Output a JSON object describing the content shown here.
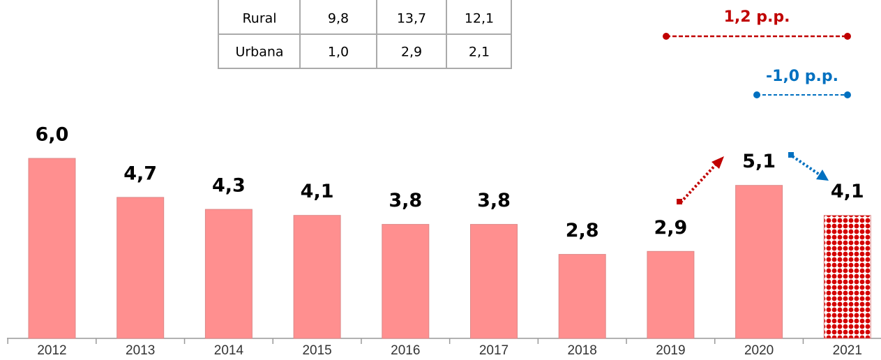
{
  "chart_data": {
    "type": "bar",
    "categories": [
      "2012",
      "2013",
      "2014",
      "2015",
      "2016",
      "2017",
      "2018",
      "2019",
      "2020",
      "2021"
    ],
    "values": [
      6.0,
      4.7,
      4.3,
      4.1,
      3.8,
      3.8,
      2.8,
      2.9,
      5.1,
      4.1
    ],
    "value_labels": [
      "6,0",
      "4,7",
      "4,3",
      "4,1",
      "3,8",
      "3,8",
      "2,8",
      "2,9",
      "5,1",
      "4,1"
    ],
    "color": "#ff8f8f",
    "pattern_color": "#d40000",
    "table": {
      "rows": [
        [
          "Rural",
          "9,8",
          "13,7",
          "12,1"
        ],
        [
          "Urbana",
          "1,0",
          "2,9",
          "2,1"
        ]
      ]
    },
    "annotations": [
      {
        "text": "1,2 p.p.",
        "color": "#c00000"
      },
      {
        "text": "-1,0 p.p.",
        "color": "#0070c0"
      }
    ]
  }
}
